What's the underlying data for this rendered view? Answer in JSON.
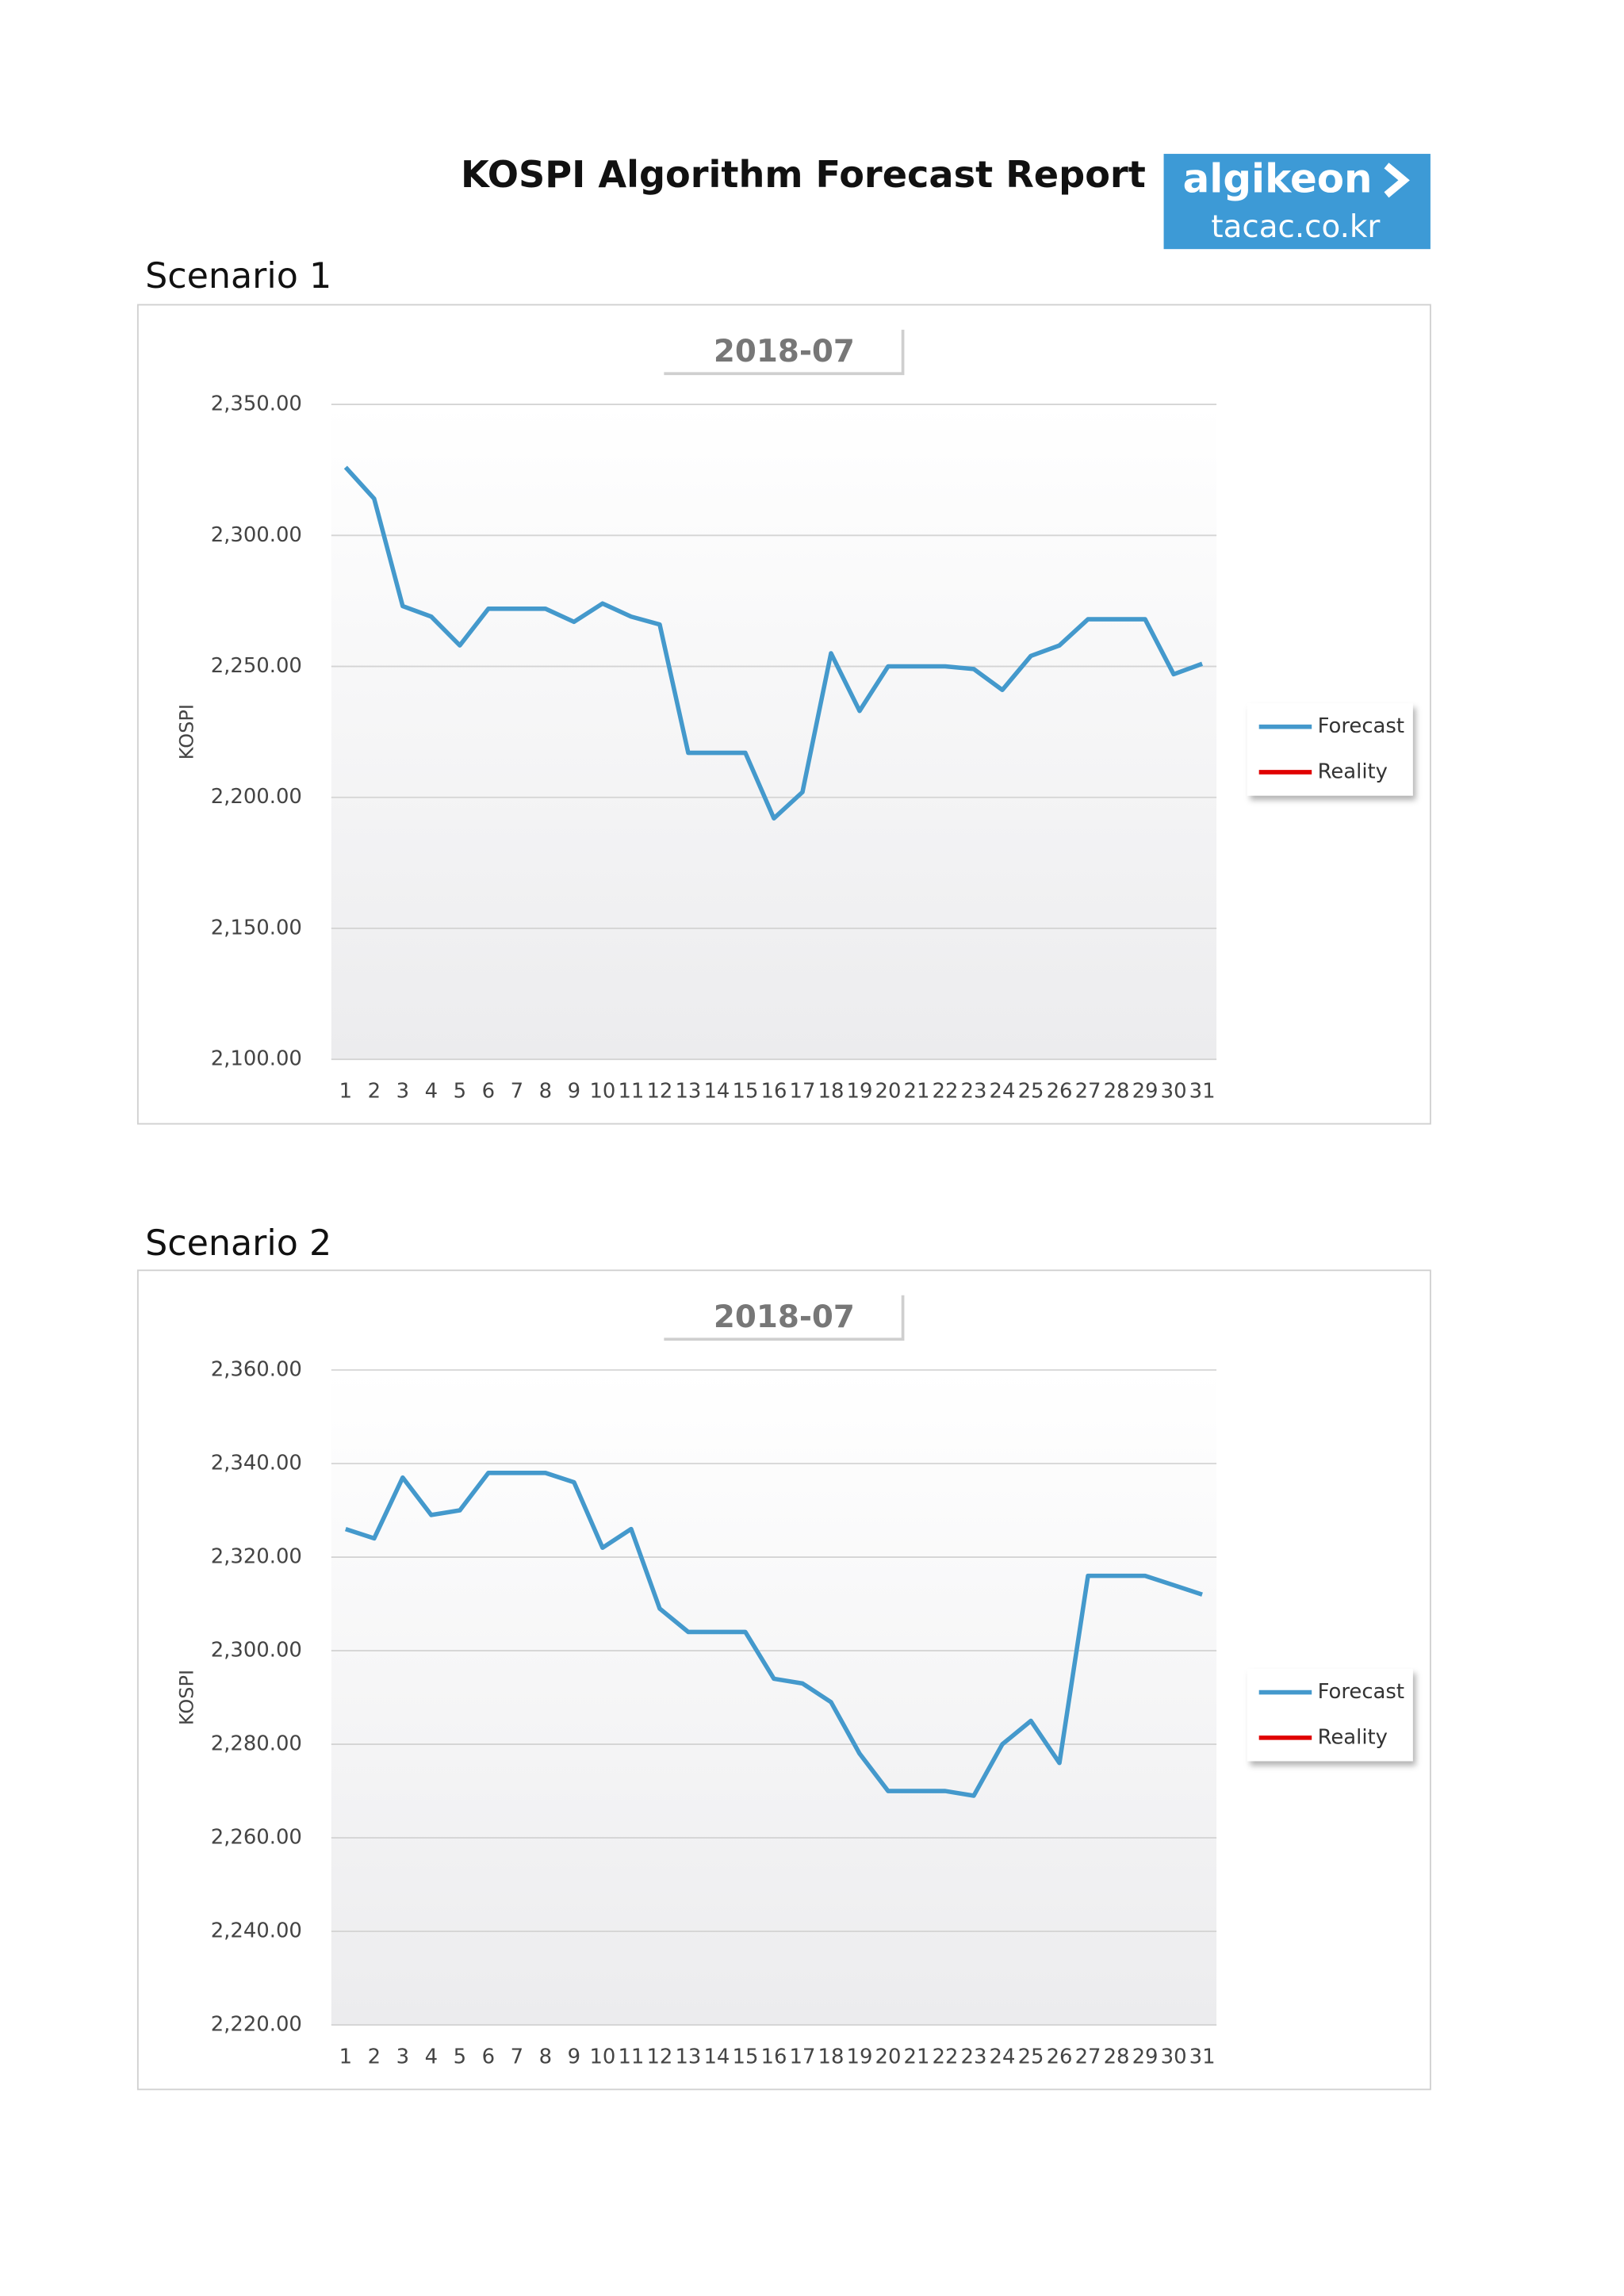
{
  "header": {
    "title": "KOSPI Algorithm Forecast Report",
    "logo_top": "algikeon",
    "logo_bottom": "tacac.co.kr"
  },
  "sections": [
    "Scenario 1",
    "Scenario 2"
  ],
  "chart_data": [
    {
      "type": "line",
      "title": "2018-07",
      "y_label": "KOSPI",
      "categories": [
        "1",
        "2",
        "3",
        "4",
        "5",
        "6",
        "7",
        "8",
        "9",
        "10",
        "11",
        "12",
        "13",
        "14",
        "15",
        "16",
        "17",
        "18",
        "19",
        "20",
        "21",
        "22",
        "23",
        "24",
        "25",
        "26",
        "27",
        "28",
        "29",
        "30",
        "31"
      ],
      "series": [
        {
          "name": "Forecast",
          "color": "#4499cc",
          "values": [
            2326,
            2314,
            2273,
            2269,
            2258,
            2272,
            2272,
            2272,
            2267,
            2274,
            2269,
            2266,
            2217,
            2217,
            2217,
            2192,
            2202,
            2255,
            2233,
            2250,
            2250,
            2250,
            2249,
            2241,
            2254,
            2258,
            2268,
            2268,
            2268,
            2247,
            2251
          ]
        },
        {
          "name": "Reality",
          "color": "#e00000",
          "values": [
            null,
            null,
            null,
            null,
            null,
            null,
            null,
            null,
            null,
            null,
            null,
            null,
            null,
            null,
            null,
            null,
            null,
            null,
            null,
            null,
            null,
            null,
            null,
            null,
            null,
            null,
            null,
            null,
            null,
            null,
            null
          ]
        }
      ],
      "ylim": [
        2100,
        2350
      ],
      "yticks": [
        {
          "value": 2100,
          "label": "2,100.00"
        },
        {
          "value": 2150,
          "label": "2,150.00"
        },
        {
          "value": 2200,
          "label": "2,200.00"
        },
        {
          "value": 2250,
          "label": "2,250.00"
        },
        {
          "value": 2300,
          "label": "2,300.00"
        },
        {
          "value": 2350,
          "label": "2,350.00"
        }
      ],
      "grid": true,
      "legend": "right"
    },
    {
      "type": "line",
      "title": "2018-07",
      "y_label": "KOSPI",
      "categories": [
        "1",
        "2",
        "3",
        "4",
        "5",
        "6",
        "7",
        "8",
        "9",
        "10",
        "11",
        "12",
        "13",
        "14",
        "15",
        "16",
        "17",
        "18",
        "19",
        "20",
        "21",
        "22",
        "23",
        "24",
        "25",
        "26",
        "27",
        "28",
        "29",
        "30",
        "31"
      ],
      "series": [
        {
          "name": "Forecast",
          "color": "#4499cc",
          "values": [
            2326,
            2324,
            2337,
            2329,
            2330,
            2338,
            2338,
            2338,
            2336,
            2322,
            2326,
            2309,
            2304,
            2304,
            2304,
            2294,
            2293,
            2289,
            2278,
            2270,
            2270,
            2270,
            2269,
            2280,
            2285,
            2276,
            2316,
            2316,
            2316,
            2314,
            2312
          ]
        },
        {
          "name": "Reality",
          "color": "#e00000",
          "values": [
            null,
            null,
            null,
            null,
            null,
            null,
            null,
            null,
            null,
            null,
            null,
            null,
            null,
            null,
            null,
            null,
            null,
            null,
            null,
            null,
            null,
            null,
            null,
            null,
            null,
            null,
            null,
            null,
            null,
            null,
            null
          ]
        }
      ],
      "ylim": [
        2220,
        2360
      ],
      "yticks": [
        {
          "value": 2220,
          "label": "2,220.00"
        },
        {
          "value": 2240,
          "label": "2,240.00"
        },
        {
          "value": 2260,
          "label": "2,260.00"
        },
        {
          "value": 2280,
          "label": "2,280.00"
        },
        {
          "value": 2300,
          "label": "2,300.00"
        },
        {
          "value": 2320,
          "label": "2,320.00"
        },
        {
          "value": 2340,
          "label": "2,340.00"
        },
        {
          "value": 2360,
          "label": "2,360.00"
        }
      ],
      "grid": true,
      "legend": "right"
    }
  ]
}
